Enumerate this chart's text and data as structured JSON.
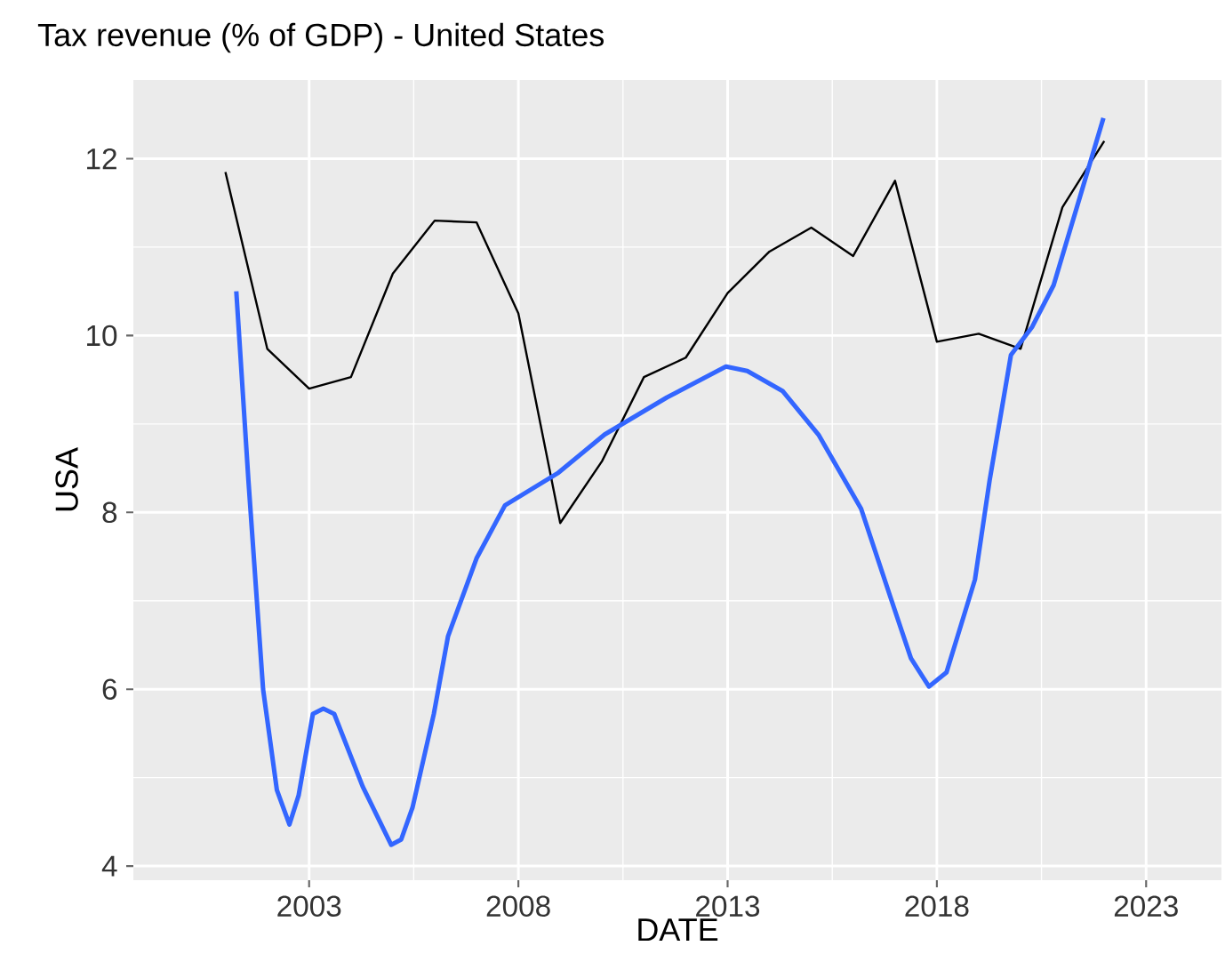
{
  "chart_data": {
    "type": "line",
    "title": "Tax revenue (% of GDP) - United States",
    "xlabel": "DATE",
    "ylabel": "USA",
    "xlim": [
      1998.8,
      2024.8
    ],
    "ylim": [
      3.84,
      12.89
    ],
    "xticks": [
      2003,
      2008,
      2013,
      2018,
      2023
    ],
    "yticks": [
      4,
      6,
      8,
      10,
      12
    ],
    "grid": true,
    "series": [
      {
        "color": "#000000",
        "x": [
          2001,
          2002,
          2003,
          2004,
          2005,
          2006,
          2007,
          2008,
          2009,
          2010,
          2011,
          2012,
          2013,
          2014,
          2015,
          2016,
          2017,
          2018,
          2019,
          2020,
          2021,
          2022
        ],
        "values": [
          11.85,
          9.85,
          9.4,
          9.53,
          10.7,
          11.3,
          11.28,
          10.25,
          7.88,
          8.58,
          9.53,
          9.75,
          10.48,
          10.95,
          11.22,
          10.9,
          11.75,
          9.93,
          10.02,
          9.85,
          11.45,
          12.2
        ]
      },
      {
        "color": "#3366ff",
        "x": [
          2001.26,
          2001.55,
          2001.9,
          2002.23,
          2002.53,
          2002.75,
          2003.09,
          2003.34,
          2003.6,
          2004.28,
          2004.96,
          2005.2,
          2005.47,
          2005.98,
          2006.32,
          2007.0,
          2007.68,
          2008.96,
          2010.06,
          2011.55,
          2012.96,
          2013.47,
          2014.32,
          2015.17,
          2016.19,
          2016.87,
          2017.38,
          2017.81,
          2018.23,
          2018.91,
          2019.26,
          2019.77,
          2020.28,
          2020.79,
          2021.3,
          2021.98
        ],
        "values": [
          10.5,
          8.36,
          6.0,
          4.86,
          4.47,
          4.8,
          5.72,
          5.78,
          5.72,
          4.9,
          4.24,
          4.3,
          4.66,
          5.72,
          6.6,
          7.48,
          8.08,
          8.45,
          8.88,
          9.3,
          9.65,
          9.6,
          9.37,
          8.88,
          8.04,
          7.07,
          6.35,
          6.03,
          6.19,
          7.24,
          8.36,
          9.78,
          10.1,
          10.57,
          11.38,
          12.46
        ]
      }
    ]
  }
}
